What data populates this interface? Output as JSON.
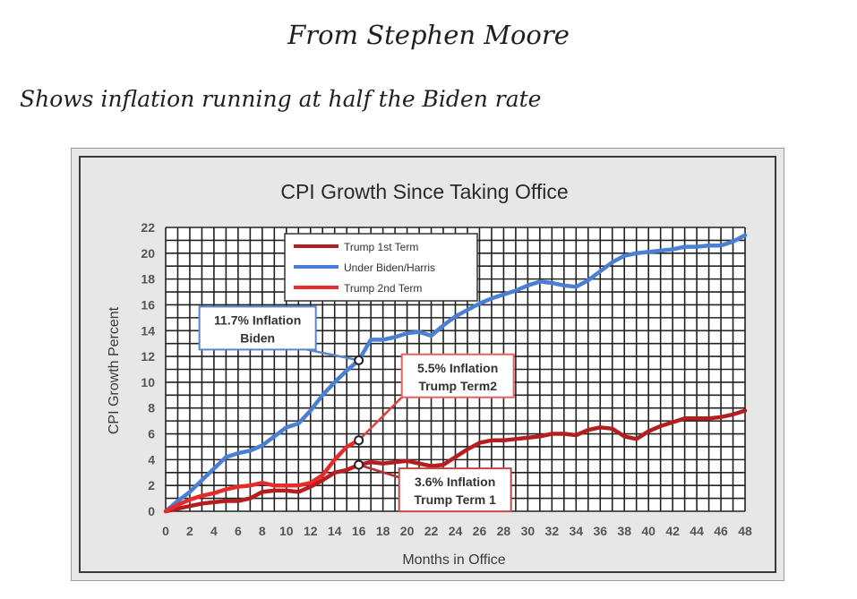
{
  "header": {
    "title": "From Stephen Moore",
    "subtitle": "Shows inflation running at half the Biden rate"
  },
  "colors": {
    "trump1": "#b41e1e",
    "biden": "#4a7fd4",
    "trump2": "#e82a2a",
    "grid": "#222222",
    "chart_bg": "#e7e7e7"
  },
  "chart_data": {
    "type": "line",
    "title": "CPI Growth Since Taking Office",
    "xlabel": "Months in Office",
    "ylabel": "CPI Growth Percent",
    "xlim": [
      0,
      48
    ],
    "ylim": [
      0,
      22
    ],
    "x_ticks": [
      0,
      2,
      4,
      6,
      8,
      10,
      12,
      14,
      16,
      18,
      20,
      22,
      24,
      26,
      28,
      30,
      32,
      34,
      36,
      38,
      40,
      42,
      44,
      46,
      48
    ],
    "y_ticks": [
      0,
      2,
      4,
      6,
      8,
      10,
      12,
      14,
      16,
      18,
      20,
      22
    ],
    "grid": true,
    "legend_position": "top-left",
    "series": [
      {
        "name": "Trump 1st Term",
        "color": "#b41e1e",
        "x": [
          0,
          1,
          2,
          3,
          4,
          5,
          6,
          7,
          8,
          9,
          10,
          11,
          12,
          13,
          14,
          15,
          16,
          17,
          18,
          19,
          20,
          21,
          22,
          23,
          24,
          25,
          26,
          27,
          28,
          29,
          30,
          31,
          32,
          33,
          34,
          35,
          36,
          37,
          38,
          39,
          40,
          41,
          42,
          43,
          44,
          45,
          46,
          47,
          48
        ],
        "values": [
          0,
          0.2,
          0.4,
          0.6,
          0.7,
          0.8,
          0.8,
          1.0,
          1.5,
          1.6,
          1.6,
          1.5,
          1.9,
          2.4,
          3.0,
          3.2,
          3.6,
          3.8,
          3.7,
          3.8,
          3.9,
          3.7,
          3.5,
          3.6,
          4.2,
          4.8,
          5.3,
          5.5,
          5.5,
          5.6,
          5.7,
          5.8,
          6.0,
          6.0,
          5.9,
          6.3,
          6.5,
          6.4,
          5.8,
          5.6,
          6.2,
          6.6,
          6.9,
          7.2,
          7.2,
          7.2,
          7.3,
          7.5,
          7.8
        ]
      },
      {
        "name": "Under Biden/Harris",
        "color": "#4a7fd4",
        "x": [
          0,
          1,
          2,
          3,
          4,
          5,
          6,
          7,
          8,
          9,
          10,
          11,
          12,
          13,
          14,
          15,
          16,
          17,
          18,
          19,
          20,
          21,
          22,
          23,
          24,
          25,
          26,
          27,
          28,
          29,
          30,
          31,
          32,
          33,
          34,
          35,
          36,
          37,
          38,
          39,
          40,
          41,
          42,
          43,
          44,
          45,
          46,
          47,
          48
        ],
        "values": [
          0,
          0.8,
          1.5,
          2.4,
          3.3,
          4.2,
          4.5,
          4.7,
          5.1,
          5.8,
          6.5,
          6.8,
          7.8,
          9.0,
          10.0,
          10.9,
          11.7,
          13.3,
          13.3,
          13.5,
          13.8,
          13.9,
          13.6,
          14.4,
          15.1,
          15.6,
          16.1,
          16.5,
          16.8,
          17.1,
          17.5,
          17.8,
          17.7,
          17.5,
          17.4,
          17.9,
          18.6,
          19.3,
          19.8,
          20.0,
          20.1,
          20.2,
          20.3,
          20.5,
          20.5,
          20.6,
          20.6,
          20.9,
          21.4
        ]
      },
      {
        "name": "Trump 2nd Term",
        "color": "#e82a2a",
        "x": [
          0,
          1,
          2,
          3,
          4,
          5,
          6,
          7,
          8,
          9,
          10,
          11,
          12,
          13,
          14,
          15,
          16
        ],
        "values": [
          0,
          0.5,
          0.9,
          1.2,
          1.4,
          1.7,
          1.9,
          2.0,
          2.2,
          2.0,
          2.0,
          2.0,
          2.2,
          2.8,
          4.0,
          5.0,
          5.5
        ]
      }
    ],
    "annotations": [
      {
        "line1": "11.7% Inflation",
        "line2": "Biden",
        "x": 16,
        "y": 11.7
      },
      {
        "line1": "5.5% Inflation",
        "line2": "Trump Term2",
        "x": 16,
        "y": 5.5
      },
      {
        "line1": "3.6% Inflation",
        "line2": "Trump Term 1",
        "x": 16,
        "y": 3.6
      }
    ]
  }
}
